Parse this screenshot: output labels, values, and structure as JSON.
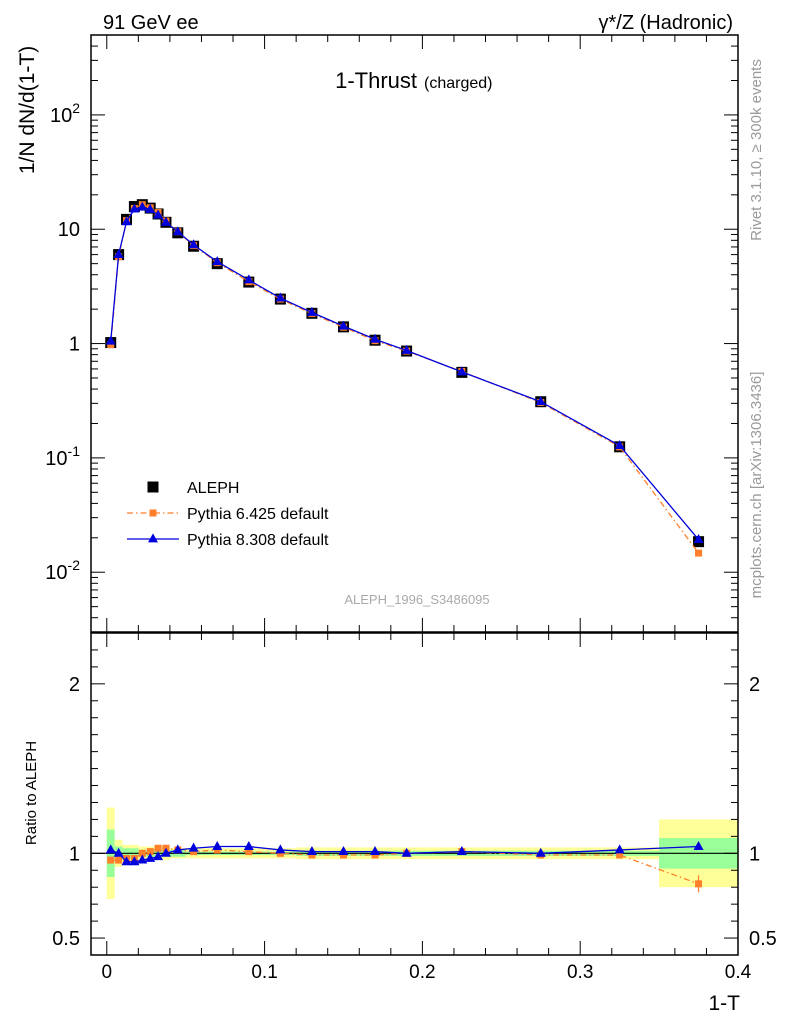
{
  "header": {
    "left": "91 GeV ee",
    "right": "γ*/Z (Hadronic)"
  },
  "side_labels": {
    "rivet": "Rivet 3.1.10, ≥ 300k events",
    "mcplots": "mcplots.cern.ch [arXiv:1306.3436]"
  },
  "colors": {
    "aleph": "#000000",
    "pythia6": "#ff7f2a",
    "pythia8": "#0000dd",
    "band_inner": "#99ff99",
    "band_outer": "#ffff99",
    "watermark": "#aaaaaa"
  },
  "chart_data": [
    {
      "type": "line",
      "title": "1-Thrust",
      "subtitle": "(charged)",
      "xlabel": "1-T",
      "ylabel": "1/N dN/d(1-T)",
      "watermark": "ALEPH_1996_S3486095",
      "xlim": [
        -0.01,
        0.4
      ],
      "ylim": [
        0.003,
        500
      ],
      "yscale": "log",
      "y_tick_labels": [
        "10^-2",
        "10^-1",
        "1",
        "10",
        "10^2"
      ],
      "legend_position": "lower-left",
      "x": [
        0.0025,
        0.0075,
        0.0125,
        0.0175,
        0.0225,
        0.0275,
        0.0325,
        0.0375,
        0.045,
        0.055,
        0.07,
        0.09,
        0.11,
        0.13,
        0.15,
        0.17,
        0.19,
        0.225,
        0.275,
        0.325,
        0.375
      ],
      "series": [
        {
          "name": "ALEPH",
          "marker": "square",
          "values": [
            1.02,
            6.0,
            12.2,
            15.8,
            16.4,
            15.3,
            13.6,
            11.5,
            9.3,
            7.1,
            5.0,
            3.45,
            2.45,
            1.84,
            1.4,
            1.07,
            0.86,
            0.56,
            0.31,
            0.125,
            0.0185
          ]
        },
        {
          "name": "Pythia 6.425 default",
          "marker": "square",
          "line_style": "dash-dot",
          "values": [
            0.98,
            5.75,
            11.9,
            15.2,
            16.4,
            15.4,
            14.0,
            11.8,
            9.5,
            7.2,
            5.1,
            3.48,
            2.45,
            1.83,
            1.39,
            1.06,
            0.86,
            0.57,
            0.305,
            0.125,
            0.0147
          ]
        },
        {
          "name": "Pythia 8.308 default",
          "marker": "triangle",
          "values": [
            1.05,
            6.0,
            11.6,
            15.0,
            15.6,
            14.9,
            13.3,
            11.5,
            9.5,
            7.3,
            5.2,
            3.6,
            2.5,
            1.87,
            1.42,
            1.09,
            0.87,
            0.565,
            0.31,
            0.128,
            0.0193
          ]
        }
      ]
    },
    {
      "type": "line",
      "xlabel": "1-T",
      "ylabel": "Ratio to ALEPH",
      "xlim": [
        -0.01,
        0.4
      ],
      "ylim": [
        0.4,
        2.3
      ],
      "y_tick_labels": [
        "0.5",
        "1",
        "2"
      ],
      "x_tick_labels": [
        "0",
        "0.1",
        "0.2",
        "0.3",
        "0.4"
      ],
      "x": [
        0.0025,
        0.0075,
        0.0125,
        0.0175,
        0.0225,
        0.0275,
        0.0325,
        0.0375,
        0.045,
        0.055,
        0.07,
        0.09,
        0.11,
        0.13,
        0.15,
        0.17,
        0.19,
        0.225,
        0.275,
        0.325,
        0.375
      ],
      "bin_edges": [
        0.0,
        0.005,
        0.01,
        0.015,
        0.02,
        0.025,
        0.03,
        0.035,
        0.04,
        0.05,
        0.06,
        0.08,
        0.1,
        0.12,
        0.14,
        0.16,
        0.18,
        0.2,
        0.25,
        0.3,
        0.35,
        0.4
      ],
      "band_inner_halfwidth": [
        0.14,
        0.04,
        0.03,
        0.03,
        0.02,
        0.02,
        0.02,
        0.02,
        0.02,
        0.01,
        0.01,
        0.01,
        0.01,
        0.015,
        0.015,
        0.015,
        0.015,
        0.015,
        0.015,
        0.015,
        0.09
      ],
      "band_outer_halfwidth": [
        0.27,
        0.08,
        0.05,
        0.05,
        0.04,
        0.04,
        0.04,
        0.04,
        0.03,
        0.03,
        0.03,
        0.03,
        0.03,
        0.035,
        0.035,
        0.035,
        0.035,
        0.035,
        0.035,
        0.035,
        0.2
      ],
      "series": [
        {
          "name": "Pythia 6.425 default",
          "values": [
            0.96,
            0.96,
            0.97,
            0.97,
            1.0,
            1.01,
            1.03,
            1.03,
            1.02,
            1.01,
            1.02,
            1.01,
            1.0,
            0.99,
            0.99,
            0.99,
            1.0,
            1.01,
            0.99,
            0.99,
            0.82
          ],
          "errors": [
            0,
            0,
            0,
            0,
            0,
            0,
            0,
            0,
            0,
            0,
            0,
            0,
            0,
            0,
            0,
            0,
            0,
            0,
            0,
            0,
            0.05
          ]
        },
        {
          "name": "Pythia 8.308 default",
          "values": [
            1.02,
            1.0,
            0.95,
            0.95,
            0.96,
            0.97,
            0.98,
            1.0,
            1.02,
            1.03,
            1.04,
            1.04,
            1.02,
            1.01,
            1.01,
            1.01,
            1.0,
            1.01,
            1.0,
            1.02,
            1.04
          ]
        }
      ]
    }
  ]
}
